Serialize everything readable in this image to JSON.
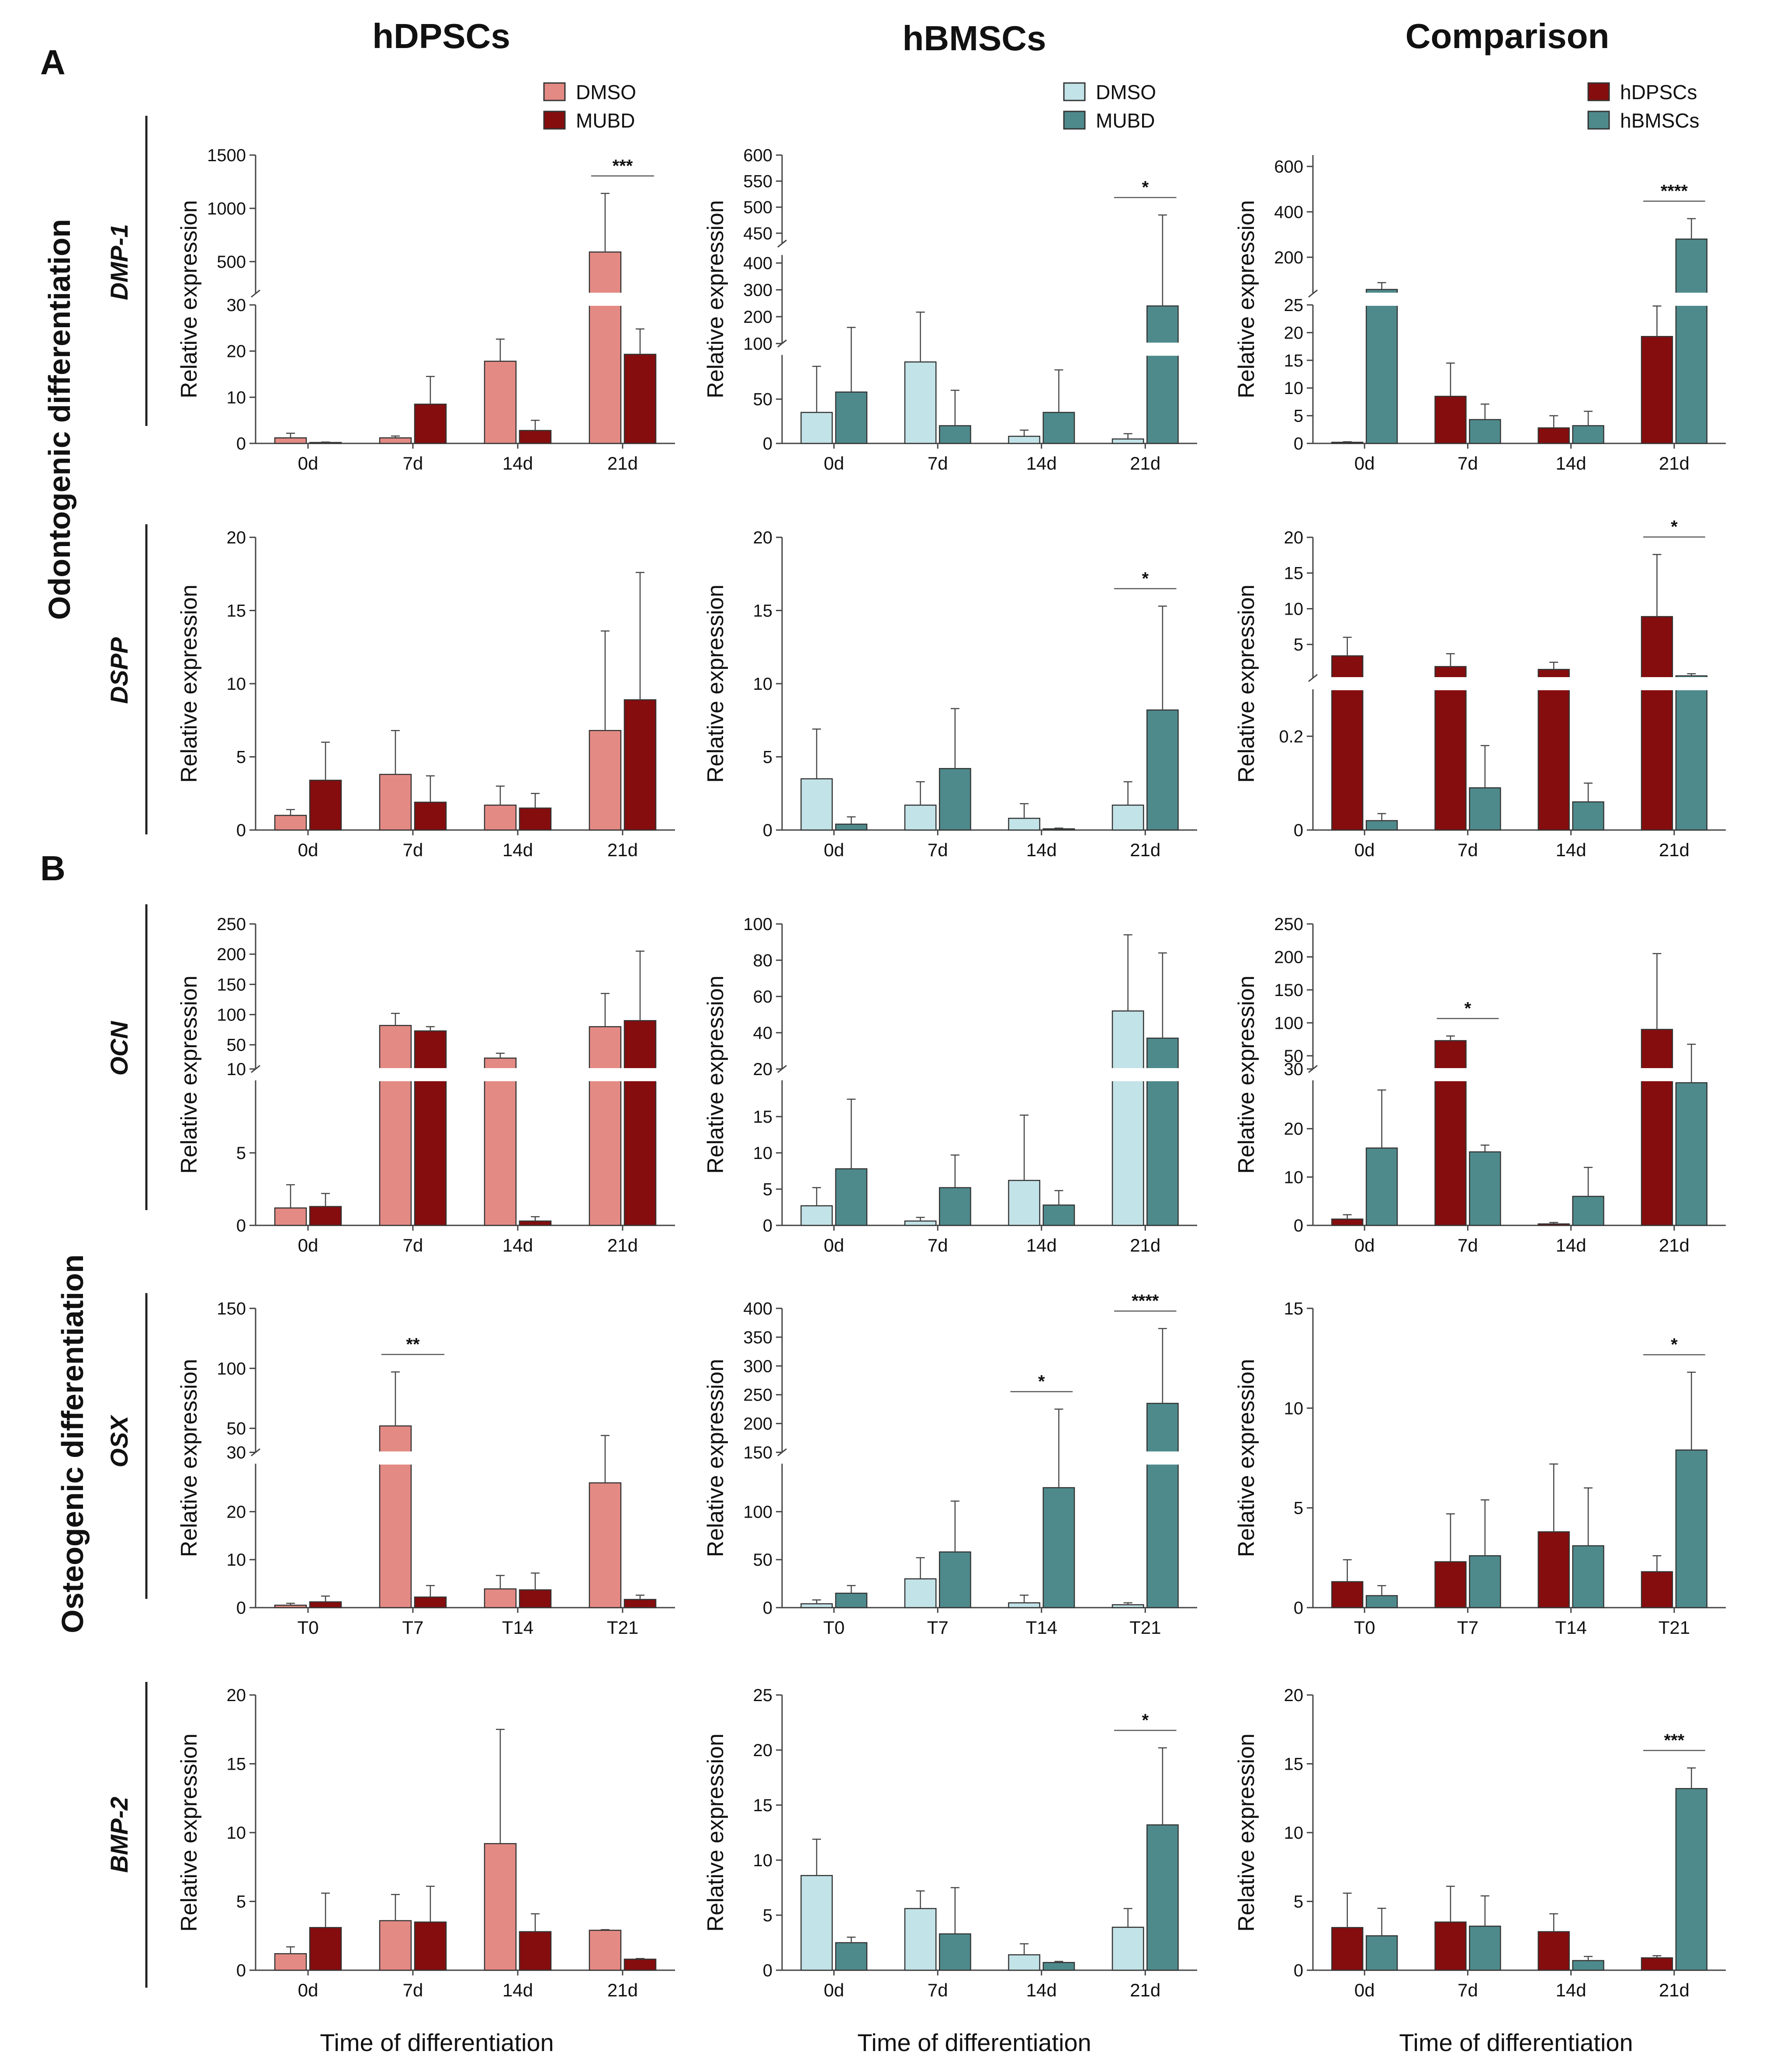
{
  "figure": {
    "col_titles": [
      "hDPSCs",
      "hBMSCs",
      "Comparison"
    ],
    "section_labels": [
      "A",
      "B"
    ],
    "section_titles": [
      "Odontogenic differentiation",
      "Osteogenic differentiation"
    ],
    "genes": [
      "DMP-1",
      "DSPP",
      "OCN",
      "OSX",
      "BMP-2"
    ],
    "ylabel": "Relative expression",
    "xlabel": "Time of differentiation"
  },
  "legends": {
    "hdpsc": [
      {
        "label": "DMSO",
        "color": "#e48a84"
      },
      {
        "label": "MUBD",
        "color": "#850d0e"
      }
    ],
    "hbmsc": [
      {
        "label": "DMSO",
        "color": "#c2e3e8"
      },
      {
        "label": "MUBD",
        "color": "#4e8a8c"
      }
    ],
    "comp": [
      {
        "label": "hDPSCs",
        "color": "#850d0e"
      },
      {
        "label": "hBMSCs",
        "color": "#4e8a8c"
      }
    ]
  },
  "chart_data": [
    {
      "type": "bar",
      "gene": "DMP-1",
      "column": "hDPSCs",
      "categories": [
        "0d",
        "7d",
        "14d",
        "21d"
      ],
      "series": [
        {
          "name": "DMSO",
          "values": [
            1.2,
            1.2,
            17.8,
            590
          ],
          "errors": [
            1,
            0.4,
            4.8,
            550
          ]
        },
        {
          "name": "MUBD",
          "values": [
            0.2,
            8.5,
            2.8,
            19.3
          ],
          "errors": [
            0.1,
            6,
            2.2,
            5.5
          ]
        }
      ],
      "segments": [
        {
          "range": [
            0,
            30
          ],
          "ticks": [
            0,
            10,
            20,
            30
          ]
        },
        {
          "range": [
            200,
            1500
          ],
          "ticks": [
            500,
            1000,
            1500
          ]
        }
      ],
      "sig": [
        {
          "cat": 3,
          "label": "***"
        }
      ]
    },
    {
      "type": "bar",
      "gene": "DMP-1",
      "column": "hBMSCs",
      "categories": [
        "0d",
        "7d",
        "14d",
        "21d"
      ],
      "series": [
        {
          "name": "DMSO",
          "values": [
            35,
            92,
            8,
            5
          ],
          "errors": [
            52,
            125,
            7,
            6
          ]
        },
        {
          "name": "MUBD",
          "values": [
            58,
            20,
            35,
            240
          ],
          "errors": [
            102,
            40,
            48,
            245
          ]
        }
      ],
      "segments": [
        {
          "range": [
            0,
            100
          ],
          "ticks": [
            0,
            50,
            100
          ]
        },
        {
          "range": [
            100,
            430
          ],
          "ticks": [
            200,
            300,
            400
          ]
        },
        {
          "range": [
            430,
            600
          ],
          "ticks": [
            450,
            500,
            550,
            600
          ]
        }
      ],
      "sig": [
        {
          "cat": 3,
          "label": "*"
        }
      ]
    },
    {
      "type": "bar",
      "gene": "DMP-1",
      "column": "Comparison",
      "categories": [
        "0d",
        "7d",
        "14d",
        "21d"
      ],
      "series": [
        {
          "name": "hDPSCs",
          "values": [
            0.2,
            8.5,
            2.8,
            19.3
          ],
          "errors": [
            0.1,
            6,
            2.2,
            5.5
          ]
        },
        {
          "name": "hBMSCs",
          "values": [
            58,
            4.3,
            3.2,
            280
          ],
          "errors": [
            30,
            2.8,
            2.6,
            90
          ]
        }
      ],
      "segments": [
        {
          "range": [
            0,
            25
          ],
          "ticks": [
            0,
            5,
            10,
            15,
            20,
            25
          ]
        },
        {
          "range": [
            40,
            650
          ],
          "ticks": [
            200,
            400,
            600
          ]
        }
      ],
      "sig": [
        {
          "cat": 3,
          "label": "****"
        }
      ]
    },
    {
      "type": "bar",
      "gene": "DSPP",
      "column": "hDPSCs",
      "categories": [
        "0d",
        "7d",
        "14d",
        "21d"
      ],
      "series": [
        {
          "name": "DMSO",
          "values": [
            1,
            3.8,
            1.7,
            6.8
          ],
          "errors": [
            0.4,
            3,
            1.3,
            6.8
          ]
        },
        {
          "name": "MUBD",
          "values": [
            3.4,
            1.9,
            1.5,
            8.9
          ],
          "errors": [
            2.6,
            1.8,
            1,
            8.7
          ]
        }
      ],
      "segments": [
        {
          "range": [
            0,
            20
          ],
          "ticks": [
            0,
            5,
            10,
            15,
            20
          ]
        }
      ],
      "sig": []
    },
    {
      "type": "bar",
      "gene": "DSPP",
      "column": "hBMSCs",
      "categories": [
        "0d",
        "7d",
        "14d",
        "21d"
      ],
      "series": [
        {
          "name": "DMSO",
          "values": [
            3.5,
            1.7,
            0.8,
            1.7
          ],
          "errors": [
            3.4,
            1.6,
            1,
            1.6
          ]
        },
        {
          "name": "MUBD",
          "values": [
            0.4,
            4.2,
            0.08,
            8.2
          ],
          "errors": [
            0.5,
            4.1,
            0.05,
            7.1
          ]
        }
      ],
      "segments": [
        {
          "range": [
            0,
            20
          ],
          "ticks": [
            0,
            5,
            10,
            15,
            20
          ]
        }
      ],
      "sig": [
        {
          "cat": 3,
          "label": "*"
        }
      ]
    },
    {
      "type": "bar",
      "gene": "DSPP",
      "column": "Comparison",
      "categories": [
        "0d",
        "7d",
        "14d",
        "21d"
      ],
      "series": [
        {
          "name": "hDPSCs",
          "values": [
            3.4,
            1.9,
            1.5,
            8.9
          ],
          "errors": [
            2.6,
            1.8,
            1,
            8.7
          ]
        },
        {
          "name": "hBMSCs",
          "values": [
            0.02,
            0.09,
            0.06,
            0.6
          ],
          "errors": [
            0.015,
            0.09,
            0.04,
            0.3
          ]
        }
      ],
      "segments": [
        {
          "range": [
            0,
            0.3
          ],
          "ticks": [
            0.0,
            0.2
          ]
        },
        {
          "range": [
            0.3,
            20
          ],
          "ticks": [
            5,
            10,
            15,
            20
          ]
        }
      ],
      "sig": [
        {
          "cat": 3,
          "label": "*"
        }
      ]
    },
    {
      "type": "bar",
      "gene": "OCN",
      "column": "hDPSCs",
      "categories": [
        "0d",
        "7d",
        "14d",
        "21d"
      ],
      "series": [
        {
          "name": "DMSO",
          "values": [
            1.2,
            82,
            28,
            80
          ],
          "errors": [
            1.6,
            20,
            8,
            55
          ]
        },
        {
          "name": "MUBD",
          "values": [
            1.3,
            73,
            0.3,
            90
          ],
          "errors": [
            0.9,
            7,
            0.3,
            115
          ]
        }
      ],
      "segments": [
        {
          "range": [
            0,
            10
          ],
          "ticks": [
            0,
            5,
            10
          ]
        },
        {
          "range": [
            10,
            250
          ],
          "ticks": [
            50,
            100,
            150,
            200,
            250
          ]
        }
      ],
      "sig": []
    },
    {
      "type": "bar",
      "gene": "OCN",
      "column": "hBMSCs",
      "categories": [
        "0d",
        "7d",
        "14d",
        "21d"
      ],
      "series": [
        {
          "name": "DMSO",
          "values": [
            2.7,
            0.6,
            6.2,
            52
          ],
          "errors": [
            2.5,
            0.5,
            9,
            42
          ]
        },
        {
          "name": "MUBD",
          "values": [
            7.8,
            5.2,
            2.8,
            37
          ],
          "errors": [
            9.6,
            4.5,
            2,
            47
          ]
        }
      ],
      "segments": [
        {
          "range": [
            0,
            20
          ],
          "ticks": [
            0,
            5,
            10,
            15,
            20
          ]
        },
        {
          "range": [
            20,
            100
          ],
          "ticks": [
            40,
            60,
            80,
            100
          ]
        }
      ],
      "sig": []
    },
    {
      "type": "bar",
      "gene": "OCN",
      "column": "Comparison",
      "categories": [
        "0d",
        "7d",
        "14d",
        "21d"
      ],
      "series": [
        {
          "name": "hDPSCs",
          "values": [
            1.3,
            73,
            0.3,
            90
          ],
          "errors": [
            0.9,
            7,
            0.3,
            115
          ]
        },
        {
          "name": "hBMSCs",
          "values": [
            16,
            15.2,
            6,
            29.5
          ],
          "errors": [
            12,
            1.4,
            6,
            38
          ]
        }
      ],
      "segments": [
        {
          "range": [
            0,
            30
          ],
          "ticks": [
            0,
            10,
            20,
            30
          ]
        },
        {
          "range": [
            30,
            250
          ],
          "ticks": [
            50,
            100,
            150,
            200,
            250
          ]
        }
      ],
      "sig": [
        {
          "cat": 1,
          "label": "*"
        }
      ]
    },
    {
      "type": "bar",
      "gene": "OSX",
      "column": "hDPSCs",
      "categories": [
        "T0",
        "T7",
        "T14",
        "T21"
      ],
      "series": [
        {
          "name": "DMSO",
          "values": [
            0.5,
            52,
            3.9,
            26
          ],
          "errors": [
            0.4,
            45,
            2.8,
            18
          ]
        },
        {
          "name": "MUBD",
          "values": [
            1.2,
            2.2,
            3.7,
            1.7
          ],
          "errors": [
            1.2,
            2.4,
            3.5,
            0.9
          ]
        }
      ],
      "segments": [
        {
          "range": [
            0,
            30
          ],
          "ticks": [
            0,
            10,
            20,
            30
          ]
        },
        {
          "range": [
            30,
            150
          ],
          "ticks": [
            50,
            100,
            150
          ]
        }
      ],
      "sig": [
        {
          "cat": 1,
          "label": "**"
        }
      ]
    },
    {
      "type": "bar",
      "gene": "OSX",
      "column": "hBMSCs",
      "categories": [
        "T0",
        "T7",
        "T14",
        "T21"
      ],
      "series": [
        {
          "name": "DMSO",
          "values": [
            4,
            30,
            5,
            3
          ],
          "errors": [
            4,
            22,
            8,
            2
          ]
        },
        {
          "name": "MUBD",
          "values": [
            15,
            58,
            125,
            235
          ],
          "errors": [
            8,
            53,
            100,
            130
          ]
        }
      ],
      "segments": [
        {
          "range": [
            0,
            150
          ],
          "ticks": [
            0,
            50,
            100,
            150
          ]
        },
        {
          "range": [
            150,
            400
          ],
          "ticks": [
            200,
            250,
            300,
            350,
            400
          ]
        }
      ],
      "sig": [
        {
          "cat": 2,
          "label": "*"
        },
        {
          "cat": 3,
          "label": "****"
        }
      ]
    },
    {
      "type": "bar",
      "gene": "OSX",
      "column": "Comparison",
      "categories": [
        "T0",
        "T7",
        "T14",
        "T21"
      ],
      "series": [
        {
          "name": "hDPSCs",
          "values": [
            1.3,
            2.3,
            3.8,
            1.8
          ],
          "errors": [
            1.1,
            2.4,
            3.4,
            0.8
          ]
        },
        {
          "name": "hBMSCs",
          "values": [
            0.6,
            2.6,
            3.1,
            7.9
          ],
          "errors": [
            0.5,
            2.8,
            2.9,
            3.9
          ]
        }
      ],
      "segments": [
        {
          "range": [
            0,
            15
          ],
          "ticks": [
            0,
            5,
            10,
            15
          ]
        }
      ],
      "sig": [
        {
          "cat": 3,
          "label": "*"
        }
      ]
    },
    {
      "type": "bar",
      "gene": "BMP-2",
      "column": "hDPSCs",
      "categories": [
        "0d",
        "7d",
        "14d",
        "21d"
      ],
      "series": [
        {
          "name": "DMSO",
          "values": [
            1.2,
            3.6,
            9.2,
            2.9
          ],
          "errors": [
            0.5,
            1.9,
            8.3,
            0.05
          ]
        },
        {
          "name": "MUBD",
          "values": [
            3.1,
            3.5,
            2.8,
            0.8
          ],
          "errors": [
            2.5,
            2.6,
            1.3,
            0.05
          ]
        }
      ],
      "segments": [
        {
          "range": [
            0,
            20
          ],
          "ticks": [
            0,
            5,
            10,
            15,
            20
          ]
        }
      ],
      "sig": []
    },
    {
      "type": "bar",
      "gene": "BMP-2",
      "column": "hBMSCs",
      "categories": [
        "0d",
        "7d",
        "14d",
        "21d"
      ],
      "series": [
        {
          "name": "DMSO",
          "values": [
            8.6,
            5.6,
            1.4,
            3.9
          ],
          "errors": [
            3.3,
            1.6,
            1,
            1.7
          ]
        },
        {
          "name": "MUBD",
          "values": [
            2.5,
            3.3,
            0.7,
            13.2
          ],
          "errors": [
            0.5,
            4.2,
            0.1,
            7
          ]
        }
      ],
      "segments": [
        {
          "range": [
            0,
            25
          ],
          "ticks": [
            0,
            5,
            10,
            15,
            20,
            25
          ]
        }
      ],
      "sig": [
        {
          "cat": 3,
          "label": "*"
        }
      ]
    },
    {
      "type": "bar",
      "gene": "BMP-2",
      "column": "Comparison",
      "categories": [
        "0d",
        "7d",
        "14d",
        "21d"
      ],
      "series": [
        {
          "name": "hDPSCs",
          "values": [
            3.1,
            3.5,
            2.8,
            0.9
          ],
          "errors": [
            2.5,
            2.6,
            1.3,
            0.15
          ]
        },
        {
          "name": "hBMSCs",
          "values": [
            2.5,
            3.2,
            0.7,
            13.2
          ],
          "errors": [
            2,
            2.2,
            0.3,
            1.5
          ]
        }
      ],
      "segments": [
        {
          "range": [
            0,
            20
          ],
          "ticks": [
            0,
            5,
            10,
            15,
            20
          ]
        }
      ],
      "sig": [
        {
          "cat": 3,
          "label": "***"
        }
      ]
    }
  ]
}
